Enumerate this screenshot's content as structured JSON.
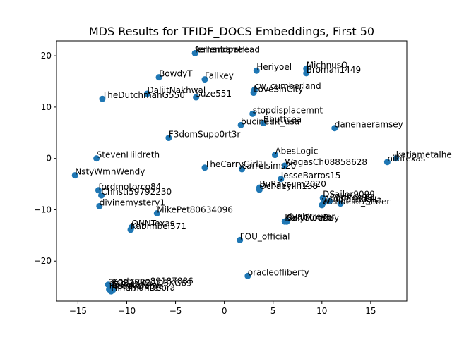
{
  "chart_data": {
    "type": "scatter",
    "title": "MDS Results for TFIDF_DOCS Embeddings, First 50",
    "xlabel": "",
    "ylabel": "",
    "xlim": [
      -17.2,
      18.7
    ],
    "ylim": [
      -27.8,
      22.9
    ],
    "xticks": [
      -15,
      -10,
      -5,
      0,
      5,
      10,
      15
    ],
    "yticks": [
      -20,
      -10,
      0,
      10,
      20
    ],
    "xtick_labels": [
      "−15",
      "−10",
      "−5",
      "0",
      "5",
      "10",
      "15"
    ],
    "ytick_labels": [
      "−20",
      "−10",
      "0",
      "10",
      "20"
    ],
    "grid": false,
    "marker_color": "#1f77b4",
    "points": [
      {
        "x": -3.0,
        "y": 20.5,
        "label": "fernandpalread"
      },
      {
        "x": -3.0,
        "y": 20.5,
        "label": "kellenbarrell"
      },
      {
        "x": 3.3,
        "y": 17.1,
        "label": "Heriyoel"
      },
      {
        "x": 8.4,
        "y": 17.5,
        "label": "MichnusO"
      },
      {
        "x": 8.4,
        "y": 16.6,
        "label": "Broman1449"
      },
      {
        "x": -6.7,
        "y": 15.8,
        "label": "BowdyT"
      },
      {
        "x": -2.0,
        "y": 15.4,
        "label": "Fallkey"
      },
      {
        "x": 3.1,
        "y": 13.4,
        "label": "cw_cumberland"
      },
      {
        "x": 3.0,
        "y": 12.8,
        "label": "LoveSinCity"
      },
      {
        "x": -7.9,
        "y": 12.6,
        "label": "DaljitNakhwal"
      },
      {
        "x": -2.9,
        "y": 11.9,
        "label": "suze551"
      },
      {
        "x": -12.5,
        "y": 11.6,
        "label": "TheDutchmanG550"
      },
      {
        "x": 2.9,
        "y": 8.7,
        "label": "stopdisplacemnt"
      },
      {
        "x": 4.0,
        "y": 6.9,
        "label": "Bbuttcea"
      },
      {
        "x": 1.7,
        "y": 6.5,
        "label": "bucinedit_usa"
      },
      {
        "x": 11.3,
        "y": 5.9,
        "label": "danenaeramsey"
      },
      {
        "x": -5.7,
        "y": 4.0,
        "label": "F3domSupp0rt3r"
      },
      {
        "x": 5.2,
        "y": 0.7,
        "label": "AbesLogic"
      },
      {
        "x": -13.1,
        "y": 0.0,
        "label": "StevenHildreth"
      },
      {
        "x": 17.6,
        "y": 0.0,
        "label": "katiametalhead"
      },
      {
        "x": 16.7,
        "y": -0.7,
        "label": "nikitexas"
      },
      {
        "x": 6.2,
        "y": -1.4,
        "label": "WagasCh08858628"
      },
      {
        "x": -2.0,
        "y": -1.8,
        "label": "TheCarryGirl1"
      },
      {
        "x": 1.8,
        "y": -2.1,
        "label": "carrelsims20"
      },
      {
        "x": -15.3,
        "y": -3.3,
        "label": "NstyWmnWendy"
      },
      {
        "x": 5.8,
        "y": -4.0,
        "label": "JesseBarros15"
      },
      {
        "x": 3.6,
        "y": -5.7,
        "label": "BuRaysum2020"
      },
      {
        "x": 3.6,
        "y": -6.1,
        "label": "Ochaeylin138"
      },
      {
        "x": -12.9,
        "y": -6.2,
        "label": "fordmotorco84"
      },
      {
        "x": -12.6,
        "y": -7.2,
        "label": "Christi59792230"
      },
      {
        "x": 10.1,
        "y": -7.7,
        "label": "DSailor9099"
      },
      {
        "x": 10.8,
        "y": -8.3,
        "label": "Carlitos99"
      },
      {
        "x": 10.2,
        "y": -8.6,
        "label": "ArnoldsAdal"
      },
      {
        "x": 11.9,
        "y": -8.8,
        "label": "Saucy_Ha"
      },
      {
        "x": 10.0,
        "y": -9.1,
        "label": "Wendelle_Slater"
      },
      {
        "x": -12.8,
        "y": -9.3,
        "label": "divinemystery1"
      },
      {
        "x": -6.9,
        "y": -10.7,
        "label": "MikePet80634096"
      },
      {
        "x": 6.4,
        "y": -12.1,
        "label": "dyahkreyer"
      },
      {
        "x": 6.4,
        "y": -12.3,
        "label": "SoftCoreBoy"
      },
      {
        "x": 6.2,
        "y": -12.3,
        "label": "KellyMouse"
      },
      {
        "x": -9.5,
        "y": -13.4,
        "label": "QNNTexas"
      },
      {
        "x": -9.6,
        "y": -13.9,
        "label": "Kabimbel571"
      },
      {
        "x": 1.6,
        "y": -15.9,
        "label": "FOU_official"
      },
      {
        "x": 2.4,
        "y": -22.9,
        "label": "oracleofliberty"
      },
      {
        "x": -11.9,
        "y": -24.6,
        "label": "sportsone89187886"
      },
      {
        "x": -11.6,
        "y": -25.0,
        "label": "BO33XK3AD3XG69"
      },
      {
        "x": -11.5,
        "y": -25.3,
        "label": "ErRookie"
      },
      {
        "x": -11.8,
        "y": -25.5,
        "label": "HelloKamay"
      },
      {
        "x": -11.4,
        "y": -25.6,
        "label": "TeddyDebra"
      },
      {
        "x": -11.6,
        "y": -25.9,
        "label": "HindmanDebra"
      }
    ]
  }
}
